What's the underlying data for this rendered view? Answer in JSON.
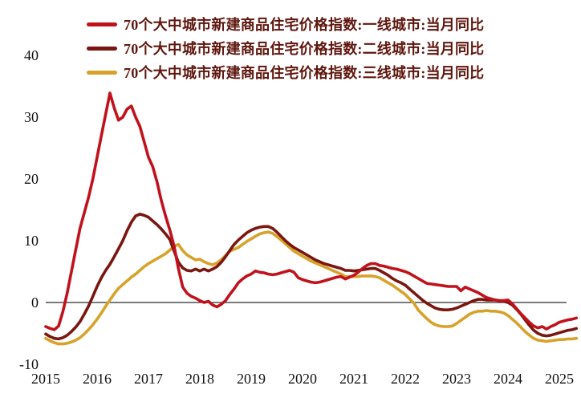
{
  "chart_data": {
    "type": "line",
    "title": "",
    "x_frequency": "monthly",
    "x_start": {
      "year": 2015,
      "month": 1
    },
    "x_end": {
      "year": 2025,
      "month": 5
    },
    "x_tick_labels": [
      "2015",
      "2016",
      "2017",
      "2018",
      "2019",
      "2020",
      "2021",
      "2022",
      "2023",
      "2024",
      "2025"
    ],
    "y_ticks": [
      40,
      30,
      20,
      10,
      0,
      -10
    ],
    "ylim": [
      -10,
      43
    ],
    "ylabel": "",
    "xlabel": "",
    "grid": false,
    "zero_line": true,
    "legend_position": "top-left",
    "axis_color": "#2b2b2b",
    "tick_label_color": "#111111",
    "legend_text_color": "#5f160d",
    "series": [
      {
        "key": "first-tier",
        "name": "70个大中城市新建商品住宅价格指数:一线城市:当月同比",
        "color": "#c1121c",
        "values": [
          -3.9,
          -4.2,
          -4.4,
          -3.8,
          -1.5,
          1.5,
          5.0,
          8.5,
          12.0,
          14.5,
          17.0,
          20.0,
          23.5,
          27.0,
          30.5,
          33.9,
          31.5,
          29.5,
          30.0,
          31.3,
          31.8,
          30.0,
          28.5,
          26.0,
          23.5,
          22.0,
          19.5,
          16.5,
          14.0,
          11.7,
          9.1,
          5.5,
          2.5,
          1.5,
          1.0,
          0.7,
          0.3,
          0.0,
          0.2,
          -0.4,
          -0.7,
          -0.3,
          0.3,
          1.3,
          2.2,
          3.2,
          3.8,
          4.3,
          4.6,
          5.1,
          4.9,
          4.8,
          4.6,
          4.5,
          4.6,
          4.8,
          5.0,
          5.2,
          4.9,
          4.0,
          3.7,
          3.5,
          3.3,
          3.2,
          3.3,
          3.5,
          3.7,
          3.9,
          4.1,
          4.2,
          3.8,
          4.1,
          4.4,
          4.9,
          5.5,
          6.0,
          6.3,
          6.3,
          6.0,
          5.9,
          5.7,
          5.5,
          5.4,
          5.2,
          5.0,
          4.7,
          4.3,
          3.9,
          3.5,
          3.1,
          3.0,
          2.9,
          2.8,
          2.7,
          2.6,
          2.6,
          2.6,
          1.9,
          2.5,
          2.2,
          1.9,
          1.6,
          1.2,
          0.8,
          0.6,
          0.4,
          0.3,
          0.3,
          0.4,
          -0.2,
          -1.0,
          -1.8,
          -2.5,
          -3.2,
          -3.8,
          -4.1,
          -3.9,
          -4.3,
          -3.9,
          -3.6,
          -3.2,
          -3.0,
          -2.8,
          -2.7,
          -2.5
        ]
      },
      {
        "key": "second-tier",
        "name": "70个大中城市新建商品住宅价格指数:二线城市:当月同比",
        "color": "#7a1610",
        "values": [
          -5.1,
          -5.5,
          -5.8,
          -5.9,
          -5.7,
          -5.3,
          -4.7,
          -4.0,
          -3.1,
          -1.9,
          -0.6,
          1.0,
          2.6,
          4.0,
          5.2,
          6.2,
          7.4,
          8.7,
          10.0,
          11.6,
          13.0,
          14.0,
          14.3,
          14.1,
          13.8,
          13.2,
          12.6,
          11.9,
          11.1,
          10.2,
          8.3,
          6.5,
          5.6,
          5.2,
          5.1,
          5.4,
          5.1,
          5.4,
          5.1,
          5.4,
          5.8,
          6.5,
          7.4,
          8.4,
          9.4,
          10.1,
          10.7,
          11.3,
          11.7,
          12.0,
          12.2,
          12.3,
          12.3,
          12.0,
          11.4,
          10.7,
          10.0,
          9.4,
          8.9,
          8.5,
          8.1,
          7.7,
          7.3,
          6.9,
          6.6,
          6.3,
          6.1,
          5.9,
          5.7,
          5.5,
          5.2,
          5.2,
          5.1,
          5.2,
          5.3,
          5.4,
          5.5,
          5.5,
          5.2,
          4.8,
          4.4,
          3.9,
          3.5,
          3.2,
          2.8,
          2.2,
          1.6,
          1.0,
          0.4,
          -0.1,
          -0.5,
          -0.9,
          -1.1,
          -1.2,
          -1.2,
          -1.1,
          -0.9,
          -0.6,
          -0.3,
          0.0,
          0.3,
          0.5,
          0.5,
          0.4,
          0.4,
          0.4,
          0.3,
          0.2,
          0.0,
          -0.4,
          -1.1,
          -1.9,
          -2.8,
          -3.7,
          -4.5,
          -5.0,
          -5.3,
          -5.4,
          -5.3,
          -5.1,
          -4.9,
          -4.7,
          -4.5,
          -4.4,
          -4.2
        ]
      },
      {
        "key": "third-tier",
        "name": "70个大中城市新建商品住宅价格指数:三线城市:当月同比",
        "color": "#d7a22a",
        "values": [
          -5.8,
          -6.2,
          -6.5,
          -6.7,
          -6.7,
          -6.6,
          -6.4,
          -6.1,
          -5.7,
          -5.1,
          -4.4,
          -3.6,
          -2.7,
          -1.7,
          -0.6,
          0.4,
          1.4,
          2.3,
          2.9,
          3.5,
          4.1,
          4.6,
          5.2,
          5.8,
          6.3,
          6.7,
          7.1,
          7.5,
          7.9,
          8.5,
          9.1,
          9.4,
          8.4,
          7.7,
          7.3,
          6.9,
          7.0,
          6.6,
          6.3,
          6.1,
          6.4,
          6.9,
          7.6,
          8.3,
          8.6,
          8.9,
          9.4,
          9.9,
          10.3,
          10.7,
          11.1,
          11.3,
          11.4,
          11.2,
          10.7,
          10.1,
          9.5,
          8.9,
          8.3,
          7.9,
          7.5,
          7.1,
          6.7,
          6.4,
          6.1,
          5.8,
          5.5,
          5.2,
          4.9,
          4.6,
          4.2,
          4.2,
          4.2,
          4.2,
          4.3,
          4.3,
          4.3,
          4.2,
          4.0,
          3.6,
          3.2,
          2.8,
          2.3,
          1.8,
          1.3,
          0.6,
          -0.1,
          -1.2,
          -1.9,
          -2.6,
          -3.2,
          -3.6,
          -3.8,
          -3.9,
          -3.9,
          -3.8,
          -3.4,
          -2.9,
          -2.4,
          -1.9,
          -1.6,
          -1.4,
          -1.4,
          -1.3,
          -1.4,
          -1.4,
          -1.5,
          -1.7,
          -2.1,
          -2.7,
          -3.3,
          -4.0,
          -4.7,
          -5.3,
          -5.8,
          -6.1,
          -6.2,
          -6.3,
          -6.2,
          -6.1,
          -6.0,
          -6.0,
          -5.9,
          -5.9,
          -5.8
        ]
      }
    ]
  }
}
